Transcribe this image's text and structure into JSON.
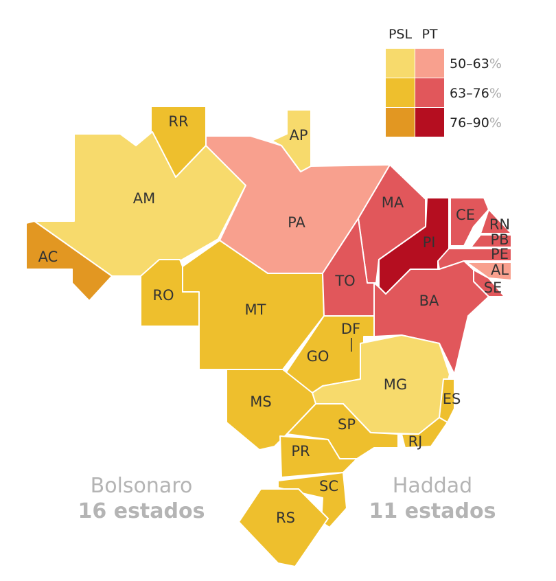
{
  "legend": {
    "party_left": "PSL",
    "party_right": "PT",
    "percent_sign": "%",
    "rows": [
      {
        "range": "50–63",
        "psl_color": "#f7da6c",
        "pt_color": "#f8a08e"
      },
      {
        "range": "63–76",
        "psl_color": "#eebf2d",
        "pt_color": "#e1575b"
      },
      {
        "range": "76–90",
        "psl_color": "#e29722",
        "pt_color": "#b50e20"
      }
    ]
  },
  "candidates": {
    "left": {
      "name": "Bolsonaro",
      "count": "16 estados"
    },
    "right": {
      "name": "Haddad",
      "count": "11 estados"
    }
  },
  "states": [
    {
      "code": "RR",
      "winner": "PSL",
      "band": "63–76",
      "color": "#eebf2d"
    },
    {
      "code": "AP",
      "winner": "PSL",
      "band": "50–63",
      "color": "#f7da6c"
    },
    {
      "code": "AM",
      "winner": "PSL",
      "band": "50–63",
      "color": "#f7da6c"
    },
    {
      "code": "PA",
      "winner": "PT",
      "band": "50–63",
      "color": "#f8a08e"
    },
    {
      "code": "MA",
      "winner": "PT",
      "band": "63–76",
      "color": "#e1575b"
    },
    {
      "code": "CE",
      "winner": "PT",
      "band": "63–76",
      "color": "#e1575b"
    },
    {
      "code": "RN",
      "winner": "PT",
      "band": "63–76",
      "color": "#e1575b"
    },
    {
      "code": "PB",
      "winner": "PT",
      "band": "63–76",
      "color": "#e1575b"
    },
    {
      "code": "PE",
      "winner": "PT",
      "band": "63–76",
      "color": "#e1575b"
    },
    {
      "code": "AL",
      "winner": "PT",
      "band": "50–63",
      "color": "#f8a08e"
    },
    {
      "code": "SE",
      "winner": "PT",
      "band": "63–76",
      "color": "#e1575b"
    },
    {
      "code": "PI",
      "winner": "PT",
      "band": "76–90",
      "color": "#b50e20"
    },
    {
      "code": "AC",
      "winner": "PSL",
      "band": "76–90",
      "color": "#e29722"
    },
    {
      "code": "RO",
      "winner": "PSL",
      "band": "63–76",
      "color": "#eebf2d"
    },
    {
      "code": "MT",
      "winner": "PSL",
      "band": "63–76",
      "color": "#eebf2d"
    },
    {
      "code": "TO",
      "winner": "PT",
      "band": "63–76",
      "color": "#e1575b"
    },
    {
      "code": "BA",
      "winner": "PT",
      "band": "63–76",
      "color": "#e1575b"
    },
    {
      "code": "DF",
      "winner": "PSL",
      "band": "63–76",
      "color": "#eebf2d"
    },
    {
      "code": "GO",
      "winner": "PSL",
      "band": "63–76",
      "color": "#eebf2d"
    },
    {
      "code": "MG",
      "winner": "PSL",
      "band": "50–63",
      "color": "#f7da6c"
    },
    {
      "code": "ES",
      "winner": "PSL",
      "band": "63–76",
      "color": "#eebf2d"
    },
    {
      "code": "MS",
      "winner": "PSL",
      "band": "63–76",
      "color": "#eebf2d"
    },
    {
      "code": "SP",
      "winner": "PSL",
      "band": "63–76",
      "color": "#eebf2d"
    },
    {
      "code": "RJ",
      "winner": "PSL",
      "band": "63–76",
      "color": "#eebf2d"
    },
    {
      "code": "PR",
      "winner": "PSL",
      "band": "63–76",
      "color": "#eebf2d"
    },
    {
      "code": "SC",
      "winner": "PSL",
      "band": "63–76",
      "color": "#eebf2d"
    },
    {
      "code": "RS",
      "winner": "PSL",
      "band": "63–76",
      "color": "#eebf2d"
    }
  ]
}
